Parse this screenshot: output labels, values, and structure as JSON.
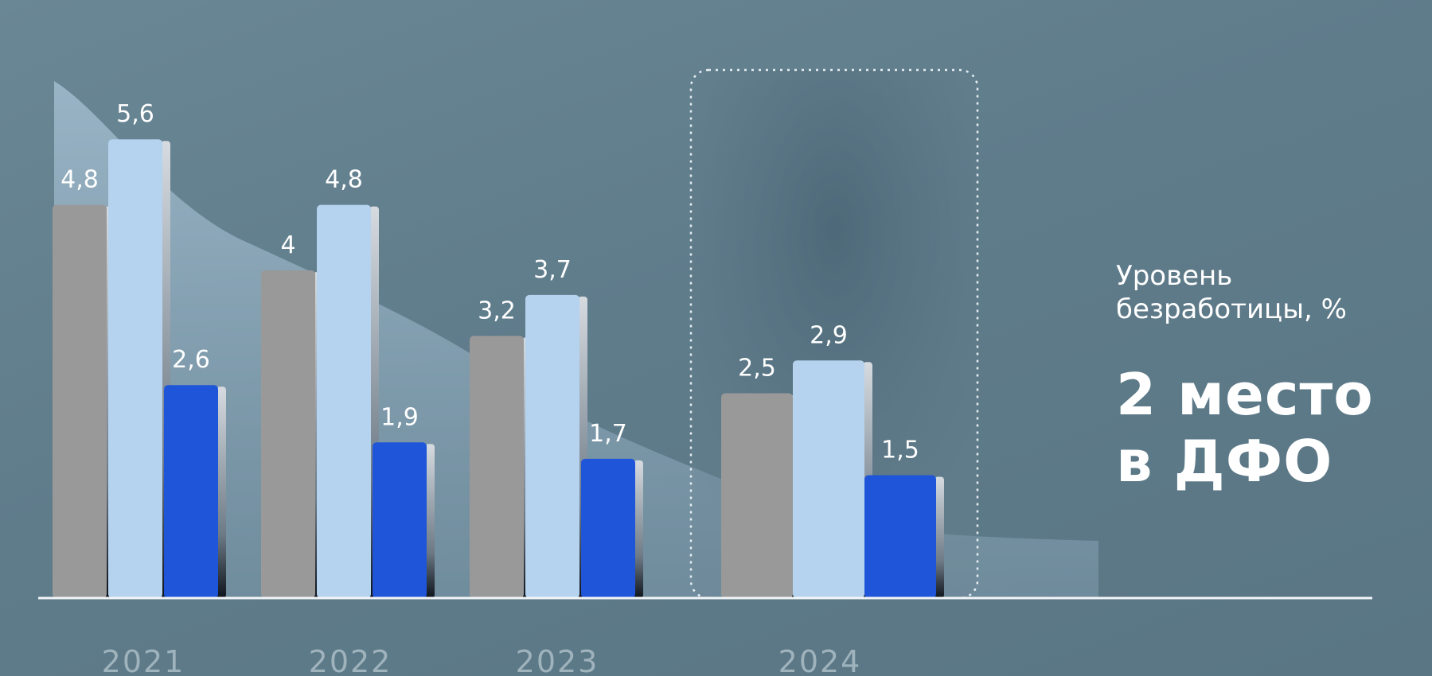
{
  "chart_data": {
    "type": "bar",
    "categories": [
      "2021",
      "2022",
      "2023",
      "2024"
    ],
    "series": [
      {
        "values": [
          4.8,
          4.0,
          3.2,
          2.5
        ],
        "labels": [
          "4,8",
          "4",
          "3,2",
          "2,5"
        ]
      },
      {
        "values": [
          5.6,
          4.8,
          3.7,
          2.9
        ],
        "labels": [
          "5,6",
          "4,8",
          "3,7",
          "2,9"
        ]
      },
      {
        "values": [
          2.6,
          1.9,
          1.7,
          1.5
        ],
        "labels": [
          "2,6",
          "1,9",
          "1,7",
          "1,5"
        ]
      }
    ],
    "ylim": [
      0,
      6
    ],
    "highlighted_category": "2024",
    "colors": [
      "#999999",
      "#b5d3ee",
      "#1f55d9"
    ]
  },
  "side_text": {
    "subtitle_line1": "Уровень",
    "subtitle_line2": "безработицы, %",
    "headline_line1": "2 место",
    "headline_line2": "в ДФО"
  }
}
